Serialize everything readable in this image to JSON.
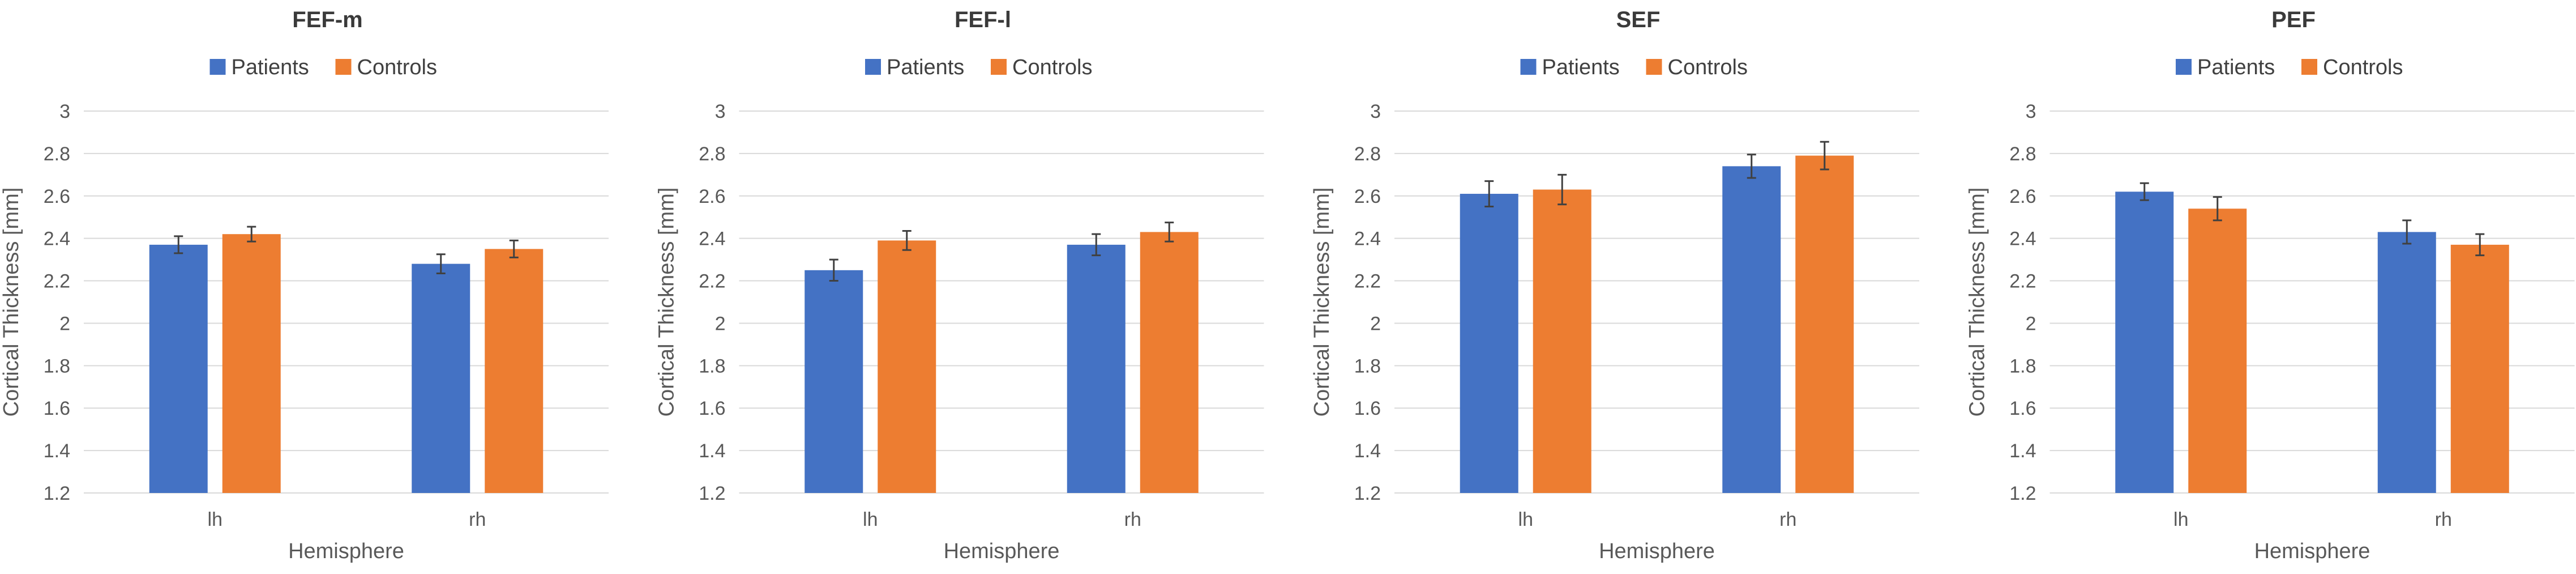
{
  "chart_data": [
    {
      "type": "bar",
      "title": "FEF-m",
      "xlabel": "Hemisphere",
      "ylabel": "Cortical Thickness [mm]",
      "categories": [
        "lh",
        "rh"
      ],
      "ylim": [
        1.2,
        3
      ],
      "yticks": [
        "1.2",
        "1.4",
        "1.6",
        "1.8",
        "2",
        "2.2",
        "2.4",
        "2.6",
        "2.8",
        "3"
      ],
      "legend": "top",
      "grid": true,
      "series": [
        {
          "name": "Patients",
          "color": "#4472C4",
          "values": [
            2.37,
            2.28
          ],
          "errors": [
            0.04,
            0.045
          ]
        },
        {
          "name": "Controls",
          "color": "#ED7D31",
          "values": [
            2.42,
            2.35
          ],
          "errors": [
            0.035,
            0.04
          ]
        }
      ]
    },
    {
      "type": "bar",
      "title": "FEF-l",
      "xlabel": "Hemisphere",
      "ylabel": "Cortical Thickness [mm]",
      "categories": [
        "lh",
        "rh"
      ],
      "ylim": [
        1.2,
        3
      ],
      "yticks": [
        "1.2",
        "1.4",
        "1.6",
        "1.8",
        "2",
        "2.2",
        "2.4",
        "2.6",
        "2.8",
        "3"
      ],
      "legend": "top",
      "grid": true,
      "series": [
        {
          "name": "Patients",
          "color": "#4472C4",
          "values": [
            2.25,
            2.37
          ],
          "errors": [
            0.05,
            0.05
          ]
        },
        {
          "name": "Controls",
          "color": "#ED7D31",
          "values": [
            2.39,
            2.43
          ],
          "errors": [
            0.045,
            0.045
          ]
        }
      ]
    },
    {
      "type": "bar",
      "title": "SEF",
      "xlabel": "Hemisphere",
      "ylabel": "Cortical Thickness [mm]",
      "categories": [
        "lh",
        "rh"
      ],
      "ylim": [
        1.2,
        3
      ],
      "yticks": [
        "1.2",
        "1.4",
        "1.6",
        "1.8",
        "2",
        "2.2",
        "2.4",
        "2.6",
        "2.8",
        "3"
      ],
      "legend": "top",
      "grid": true,
      "series": [
        {
          "name": "Patients",
          "color": "#4472C4",
          "values": [
            2.61,
            2.74
          ],
          "errors": [
            0.06,
            0.055
          ]
        },
        {
          "name": "Controls",
          "color": "#ED7D31",
          "values": [
            2.63,
            2.79
          ],
          "errors": [
            0.07,
            0.065
          ]
        }
      ]
    },
    {
      "type": "bar",
      "title": "PEF",
      "xlabel": "Hemisphere",
      "ylabel": "Cortical Thickness [mm]",
      "categories": [
        "lh",
        "rh"
      ],
      "ylim": [
        1.2,
        3
      ],
      "yticks": [
        "1.2",
        "1.4",
        "1.6",
        "1.8",
        "2",
        "2.2",
        "2.4",
        "2.6",
        "2.8",
        "3"
      ],
      "legend": "top",
      "grid": true,
      "series": [
        {
          "name": "Patients",
          "color": "#4472C4",
          "values": [
            2.62,
            2.43
          ],
          "errors": [
            0.04,
            0.055
          ]
        },
        {
          "name": "Controls",
          "color": "#ED7D31",
          "values": [
            2.54,
            2.37
          ],
          "errors": [
            0.055,
            0.05
          ]
        }
      ]
    }
  ]
}
